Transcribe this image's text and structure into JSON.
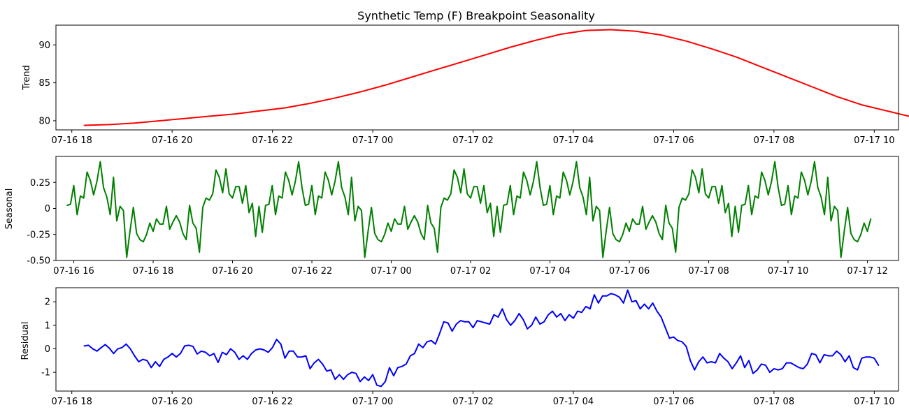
{
  "figure": {
    "title": "Synthetic Temp (F) Breakpoint Seasonality"
  },
  "chart_data": [
    {
      "type": "line",
      "title": "Synthetic Temp (F) Breakpoint Seasonality",
      "xlabel": "",
      "ylabel": "Trend",
      "xlim": [
        "2024-07-16 17:41",
        "2024-07-17 10:29"
      ],
      "ylim": [
        78.8,
        92.6
      ],
      "x_ticks": [
        "07-16 18",
        "07-16 20",
        "07-16 22",
        "07-17 00",
        "07-17 02",
        "07-17 04",
        "07-17 06",
        "07-17 08",
        "07-17 10"
      ],
      "y_ticks": [
        80,
        85,
        90
      ],
      "grid": false,
      "color": "#ff0000",
      "series": [
        {
          "x_start": "2024-07-16 18:15",
          "x_step_minutes": 5,
          "values": [
            79.4,
            79.5,
            79.7,
            80.0,
            80.3,
            80.6,
            80.9,
            81.3,
            81.7,
            82.3,
            83.0,
            83.8,
            84.7,
            85.7,
            86.7,
            87.7,
            88.7,
            89.7,
            90.6,
            91.4,
            91.9,
            92.0,
            91.8,
            91.3,
            90.5,
            89.5,
            88.4,
            87.1,
            85.8,
            84.5,
            83.2,
            82.1,
            81.3,
            80.5,
            79.8
          ]
        }
      ]
    },
    {
      "type": "line",
      "xlabel": "",
      "ylabel": "Seasonal",
      "xlim": [
        "2024-07-16 15:33",
        "2024-07-17 12:47"
      ],
      "ylim": [
        -0.5,
        0.5
      ],
      "x_ticks": [
        "07-16 16",
        "07-16 18",
        "07-16 20",
        "07-16 22",
        "07-17 00",
        "07-17 02",
        "07-17 04",
        "07-17 06",
        "07-17 08",
        "07-17 10",
        "07-17 12"
      ],
      "y_ticks": [
        -0.5,
        -0.25,
        0.0,
        0.25
      ],
      "grid": false,
      "color": "#008000",
      "series": [
        {
          "x_start": "2024-07-16 15:50",
          "x_step_minutes": 5,
          "period": 72,
          "cycle_values": [
            0.03,
            0.04,
            0.22,
            -0.06,
            0.12,
            0.1,
            0.35,
            0.27,
            0.13,
            0.26,
            0.45,
            0.2,
            0.11,
            -0.06,
            0.3,
            -0.12,
            0.02,
            -0.02,
            -0.47,
            -0.22,
            0.01,
            -0.24,
            -0.3,
            -0.32,
            -0.25,
            -0.14,
            -0.22,
            -0.1,
            -0.15,
            -0.15,
            0.02,
            -0.2,
            -0.13,
            -0.07,
            -0.13,
            -0.24,
            -0.3,
            0.03,
            -0.14,
            -0.19,
            -0.42,
            0.01,
            0.1,
            0.08,
            0.14,
            0.37,
            0.3,
            0.15,
            0.38,
            0.14,
            0.1,
            0.21,
            0.21,
            0.05,
            0.22,
            -0.04,
            0.05,
            -0.27,
            0.02,
            -0.23,
            0.03,
            0.04,
            0.22,
            -0.06,
            0.12,
            0.1,
            0.35,
            0.27,
            0.13,
            0.26,
            0.45,
            0.2
          ],
          "values_count": 244
        }
      ]
    },
    {
      "type": "line",
      "xlabel": "",
      "ylabel": "Residual",
      "xlim": [
        "2024-07-16 17:41",
        "2024-07-17 10:29"
      ],
      "ylim": [
        -1.8,
        2.6
      ],
      "x_ticks": [
        "07-16 18",
        "07-16 20",
        "07-16 22",
        "07-17 00",
        "07-17 02",
        "07-17 04",
        "07-17 06",
        "07-17 08",
        "07-17 10"
      ],
      "y_ticks": [
        -1,
        0,
        1,
        2
      ],
      "grid": false,
      "color": "#0000ff",
      "series": [
        {
          "x_start": "2024-07-16 18:15",
          "x_step_minutes": 5,
          "values": [
            0.12,
            0.15,
            0.0,
            -0.1,
            0.05,
            0.18,
            0.02,
            -0.2,
            0.0,
            0.05,
            0.2,
            0.0,
            -0.3,
            -0.55,
            -0.45,
            -0.5,
            -0.8,
            -0.55,
            -0.75,
            -0.45,
            -0.35,
            -0.2,
            -0.35,
            -0.2,
            0.12,
            0.15,
            0.1,
            -0.22,
            -0.1,
            -0.15,
            -0.3,
            -0.2,
            -0.58,
            -0.15,
            -0.25,
            0.0,
            -0.15,
            -0.45,
            -0.3,
            -0.45,
            -0.2,
            -0.05,
            0.0,
            -0.05,
            -0.15,
            0.05,
            0.4,
            0.2,
            -0.4,
            -0.1,
            -0.1,
            -0.35,
            -0.35,
            -0.3,
            -0.85,
            -0.6,
            -0.45,
            -0.65,
            -0.95,
            -0.9,
            -1.3,
            -1.1,
            -1.3,
            -1.1,
            -1.0,
            -1.05,
            -1.4,
            -1.2,
            -1.35,
            -1.1,
            -1.55,
            -1.6,
            -1.4,
            -0.8,
            -1.15,
            -0.8,
            -0.75,
            -0.65,
            -0.3,
            -0.2,
            0.2,
            0.05,
            0.3,
            0.35,
            0.2,
            0.65,
            1.15,
            1.1,
            0.75,
            1.05,
            1.2,
            1.15,
            1.15,
            0.9,
            1.2,
            1.15,
            1.1,
            1.05,
            1.45,
            1.35,
            1.7,
            1.25,
            1.0,
            1.2,
            1.5,
            1.25,
            0.85,
            1.0,
            1.35,
            1.05,
            1.15,
            1.45,
            1.6,
            1.35,
            1.5,
            1.2,
            1.45,
            1.3,
            1.6,
            1.55,
            1.8,
            1.7,
            2.3,
            1.95,
            2.25,
            2.25,
            2.35,
            2.3,
            2.2,
            1.95,
            2.5,
            2.0,
            2.05,
            1.7,
            1.9,
            1.7,
            1.95,
            1.6,
            1.35,
            0.9,
            0.45,
            0.5,
            0.35,
            0.3,
            0.1,
            -0.5,
            -0.9,
            -0.55,
            -0.35,
            -0.6,
            -0.55,
            -0.6,
            -0.2,
            -0.4,
            -0.55,
            -0.85,
            -0.6,
            -0.3,
            -0.8,
            -0.5,
            -1.05,
            -0.9,
            -0.65,
            -0.7,
            -1.0,
            -0.85,
            -0.9,
            -0.85,
            -0.6,
            -0.6,
            -0.7,
            -0.8,
            -0.85,
            -0.65,
            -0.2,
            -0.25,
            -0.6,
            -0.25,
            -0.3,
            -0.3,
            -0.1,
            -0.25,
            -0.55,
            -0.3,
            -0.8,
            -0.9,
            -0.4,
            -0.35,
            -0.35,
            -0.4,
            -0.7
          ]
        }
      ]
    }
  ]
}
